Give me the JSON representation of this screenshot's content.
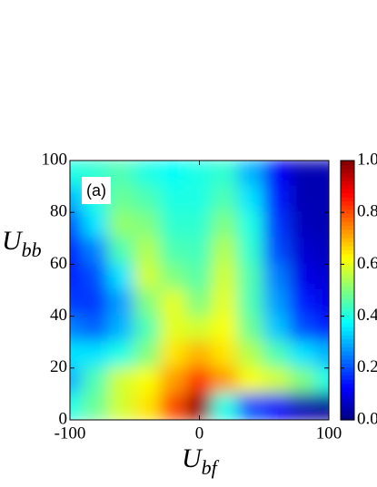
{
  "chart_data": {
    "type": "heatmap",
    "annotation": "(a)",
    "xlabel": "U",
    "xlabel_sub": "bf",
    "ylabel": "U",
    "ylabel_sub": "bb",
    "colormap": "jet",
    "x": [
      -100,
      -80,
      -60,
      -40,
      -20,
      0,
      20,
      40,
      60,
      80,
      100
    ],
    "y": [
      95,
      85,
      75,
      65,
      55,
      45,
      35,
      25,
      15,
      5
    ],
    "z": [
      [
        0.4,
        0.42,
        0.45,
        0.4,
        0.38,
        0.4,
        0.42,
        0.3,
        0.12,
        0.05,
        0.05
      ],
      [
        0.3,
        0.4,
        0.48,
        0.45,
        0.4,
        0.4,
        0.45,
        0.35,
        0.15,
        0.05,
        0.05
      ],
      [
        0.2,
        0.35,
        0.52,
        0.5,
        0.42,
        0.42,
        0.5,
        0.4,
        0.18,
        0.06,
        0.05
      ],
      [
        0.15,
        0.25,
        0.45,
        0.55,
        0.45,
        0.44,
        0.55,
        0.42,
        0.2,
        0.08,
        0.06
      ],
      [
        0.15,
        0.2,
        0.35,
        0.58,
        0.5,
        0.46,
        0.58,
        0.45,
        0.25,
        0.1,
        0.08
      ],
      [
        0.18,
        0.18,
        0.28,
        0.5,
        0.6,
        0.5,
        0.6,
        0.45,
        0.28,
        0.15,
        0.1
      ],
      [
        0.25,
        0.22,
        0.3,
        0.45,
        0.6,
        0.58,
        0.62,
        0.48,
        0.32,
        0.2,
        0.15
      ],
      [
        0.35,
        0.35,
        0.4,
        0.5,
        0.65,
        0.7,
        0.65,
        0.55,
        0.45,
        0.35,
        0.3
      ],
      [
        0.3,
        0.45,
        0.58,
        0.62,
        0.72,
        0.82,
        0.72,
        0.62,
        0.58,
        0.5,
        0.4
      ],
      [
        0.4,
        0.48,
        0.58,
        0.65,
        0.8,
        0.98,
        0.4,
        0.2,
        0.12,
        0.05,
        0.02
      ]
    ],
    "xlim": [
      -100,
      100
    ],
    "xticks": [
      -100,
      0,
      100
    ],
    "ylim": [
      0,
      100
    ],
    "yticks": [
      0,
      20,
      40,
      60,
      80,
      100
    ],
    "clim": [
      0,
      1
    ],
    "cticks": [
      {
        "value": 0,
        "label": "0.0"
      },
      0.2,
      0.4,
      0.6,
      0.8,
      {
        "value": 1,
        "label": "1.0"
      }
    ]
  }
}
